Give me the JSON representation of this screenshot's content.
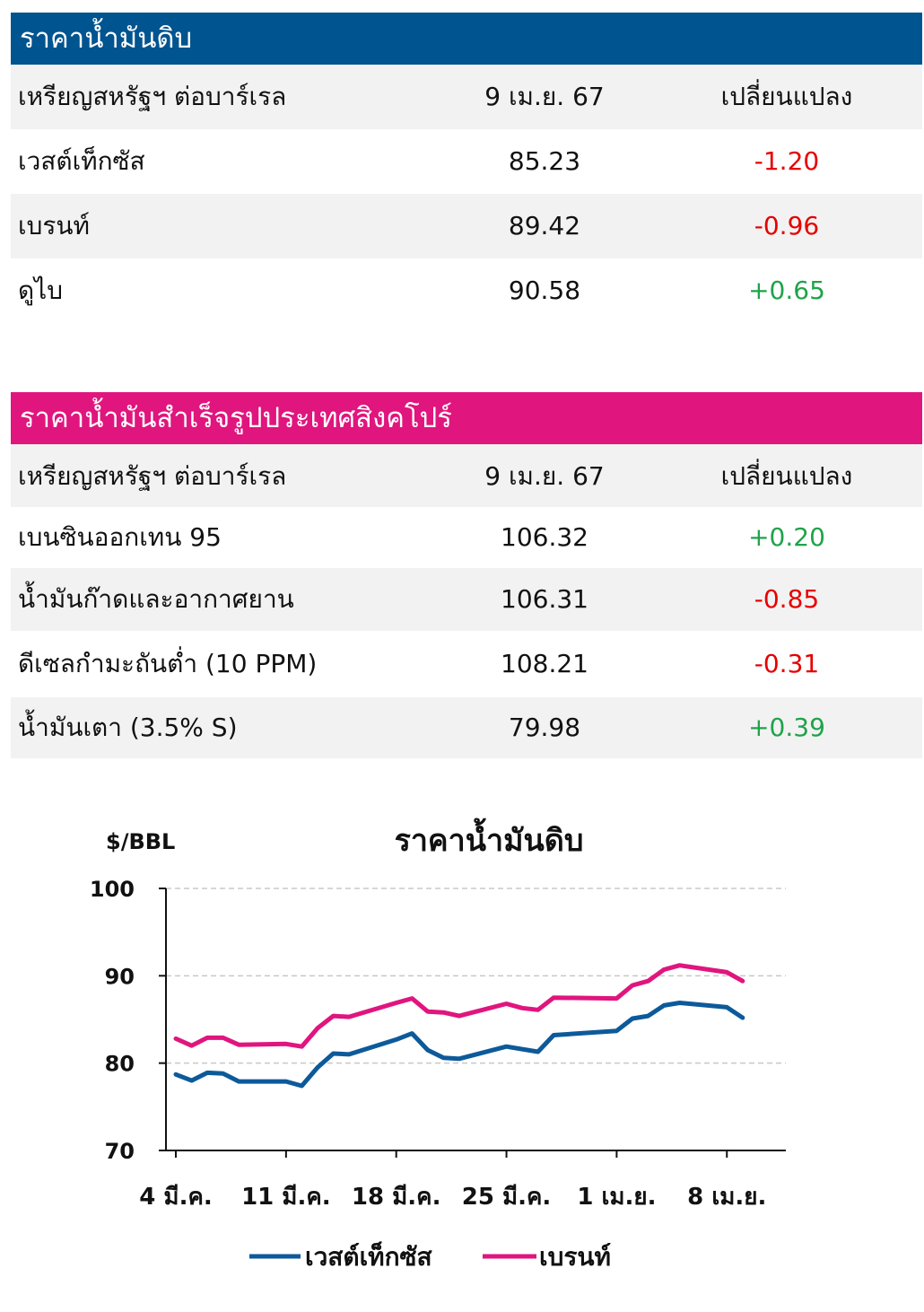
{
  "crude_table": {
    "title": "ราคาน้ำมันดิบ",
    "header_color": "#00548f",
    "columns": [
      "เหรียญสหรัฐฯ ต่อบาร์เรล",
      "9 เม.ย. 67",
      "เปลี่ยนแปลง"
    ],
    "rows": [
      {
        "name": "เวสต์เท็กซัส",
        "price": "85.23",
        "change": "-1.20"
      },
      {
        "name": "เบรนท์",
        "price": "89.42",
        "change": "-0.96"
      },
      {
        "name": "ดูไบ",
        "price": "90.58",
        "change": "+0.65"
      }
    ]
  },
  "singapore_table": {
    "title": "ราคาน้ำมันสำเร็จรูปประเทศสิงคโปร์",
    "header_color": "#e0157e",
    "columns": [
      "เหรียญสหรัฐฯ ต่อบาร์เรล",
      "9 เม.ย. 67",
      "เปลี่ยนแปลง"
    ],
    "rows": [
      {
        "name": "เบนซินออกเทน 95",
        "price": "106.32",
        "change": "+0.20"
      },
      {
        "name": "น้ำมันก๊าดและอากาศยาน",
        "price": "106.31",
        "change": "-0.85"
      },
      {
        "name": "ดีเซลกำมะถันต่ำ (10 PPM)",
        "price": "108.21",
        "change": "-0.31"
      },
      {
        "name": "น้ำมันเตา (3.5% S)",
        "price": "79.98",
        "change": "+0.39"
      }
    ]
  },
  "colors": {
    "negative": "#e60000",
    "positive": "#1fa34a",
    "wti": "#0d5a9a",
    "brent": "#e0157e"
  },
  "chart_data": {
    "type": "line",
    "title": "ราคาน้ำมันดิบ",
    "ylabel": "$/BBL",
    "ylim": [
      70,
      100
    ],
    "yticks": [
      70,
      80,
      90,
      100
    ],
    "grid": true,
    "legend_position": "bottom",
    "xtick_labels": [
      "4 มี.ค.",
      "11 มี.ค.",
      "18 มี.ค.",
      "25 มี.ค.",
      "1 เม.ย.",
      "8 เม.ย."
    ],
    "x": [
      "2024-03-04",
      "2024-03-05",
      "2024-03-06",
      "2024-03-07",
      "2024-03-08",
      "2024-03-11",
      "2024-03-12",
      "2024-03-13",
      "2024-03-14",
      "2024-03-15",
      "2024-03-18",
      "2024-03-19",
      "2024-03-20",
      "2024-03-21",
      "2024-03-22",
      "2024-03-25",
      "2024-03-26",
      "2024-03-27",
      "2024-03-28",
      "2024-04-01",
      "2024-04-02",
      "2024-04-03",
      "2024-04-04",
      "2024-04-05",
      "2024-04-08",
      "2024-04-09"
    ],
    "series": [
      {
        "name": "เวสต์เท็กซัส",
        "values": [
          78.7,
          78.0,
          78.9,
          78.8,
          77.9,
          77.9,
          77.4,
          79.5,
          81.1,
          81.0,
          82.7,
          83.4,
          81.5,
          80.6,
          80.5,
          81.9,
          81.6,
          81.3,
          83.2,
          83.7,
          85.1,
          85.4,
          86.6,
          86.9,
          86.4,
          85.2
        ]
      },
      {
        "name": "เบรนท์",
        "values": [
          82.8,
          82.0,
          82.9,
          82.9,
          82.1,
          82.2,
          81.9,
          84.0,
          85.4,
          85.3,
          86.9,
          87.4,
          85.9,
          85.8,
          85.4,
          86.8,
          86.3,
          86.1,
          87.5,
          87.4,
          88.9,
          89.4,
          90.7,
          91.2,
          90.4,
          89.4
        ]
      }
    ]
  }
}
